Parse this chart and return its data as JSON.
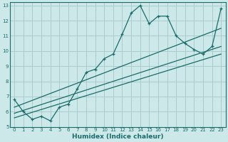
{
  "xlabel": "Humidex (Indice chaleur)",
  "xlim": [
    -0.5,
    23.5
  ],
  "ylim": [
    5,
    13.2
  ],
  "yticks": [
    5,
    6,
    7,
    8,
    9,
    10,
    11,
    12,
    13
  ],
  "xticks": [
    0,
    1,
    2,
    3,
    4,
    5,
    6,
    7,
    8,
    9,
    10,
    11,
    12,
    13,
    14,
    15,
    16,
    17,
    18,
    19,
    20,
    21,
    22,
    23
  ],
  "background_color": "#cce8e8",
  "grid_color": "#aacccc",
  "line_color": "#1a6b6b",
  "zigzag": {
    "x": [
      0,
      1,
      2,
      3,
      4,
      5,
      6,
      7,
      8,
      9,
      10,
      11,
      12,
      13,
      14,
      15,
      16,
      17,
      18,
      19,
      20,
      21,
      22,
      23
    ],
    "y": [
      6.8,
      6.0,
      5.5,
      5.7,
      5.4,
      6.3,
      6.5,
      7.5,
      8.6,
      8.8,
      9.5,
      9.8,
      11.1,
      12.5,
      13.0,
      11.8,
      12.3,
      12.3,
      11.0,
      10.5,
      10.1,
      9.8,
      10.3,
      12.8
    ]
  },
  "trend_lines": [
    {
      "x": [
        0,
        23
      ],
      "y": [
        6.3,
        11.5
      ]
    },
    {
      "x": [
        0,
        23
      ],
      "y": [
        5.9,
        10.3
      ]
    },
    {
      "x": [
        0,
        23
      ],
      "y": [
        5.6,
        9.8
      ]
    }
  ]
}
